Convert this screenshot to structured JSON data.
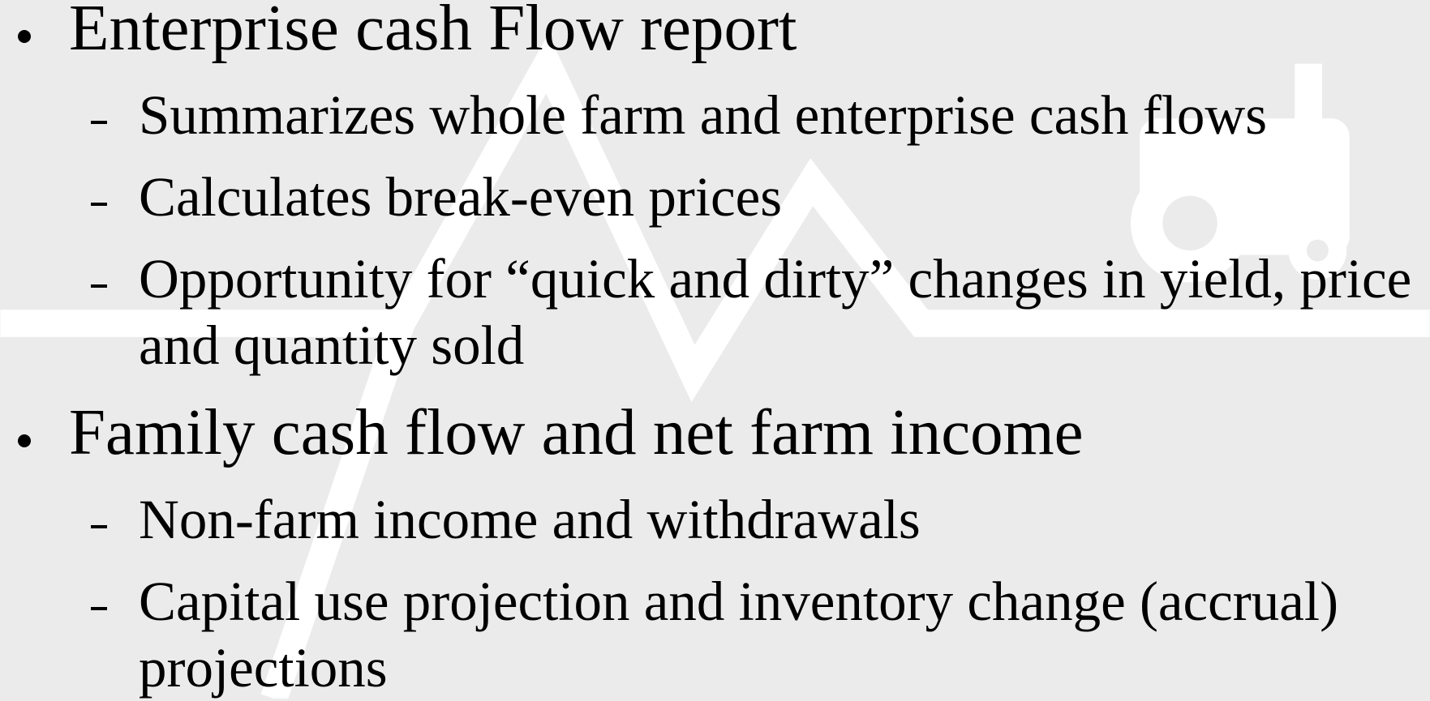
{
  "slide": {
    "items": [
      {
        "text": "Enterprise cash Flow report",
        "subitems": [
          "Summarizes whole farm and enterprise cash flows",
          "Calculates break-even prices",
          "Opportunity for “quick and dirty” changes in yield, price and quantity sold"
        ]
      },
      {
        "text": "Family cash flow and net farm income",
        "subitems": [
          "Non-farm income and withdrawals",
          "Capital use projection and inventory change (accrual) projections"
        ]
      }
    ]
  }
}
